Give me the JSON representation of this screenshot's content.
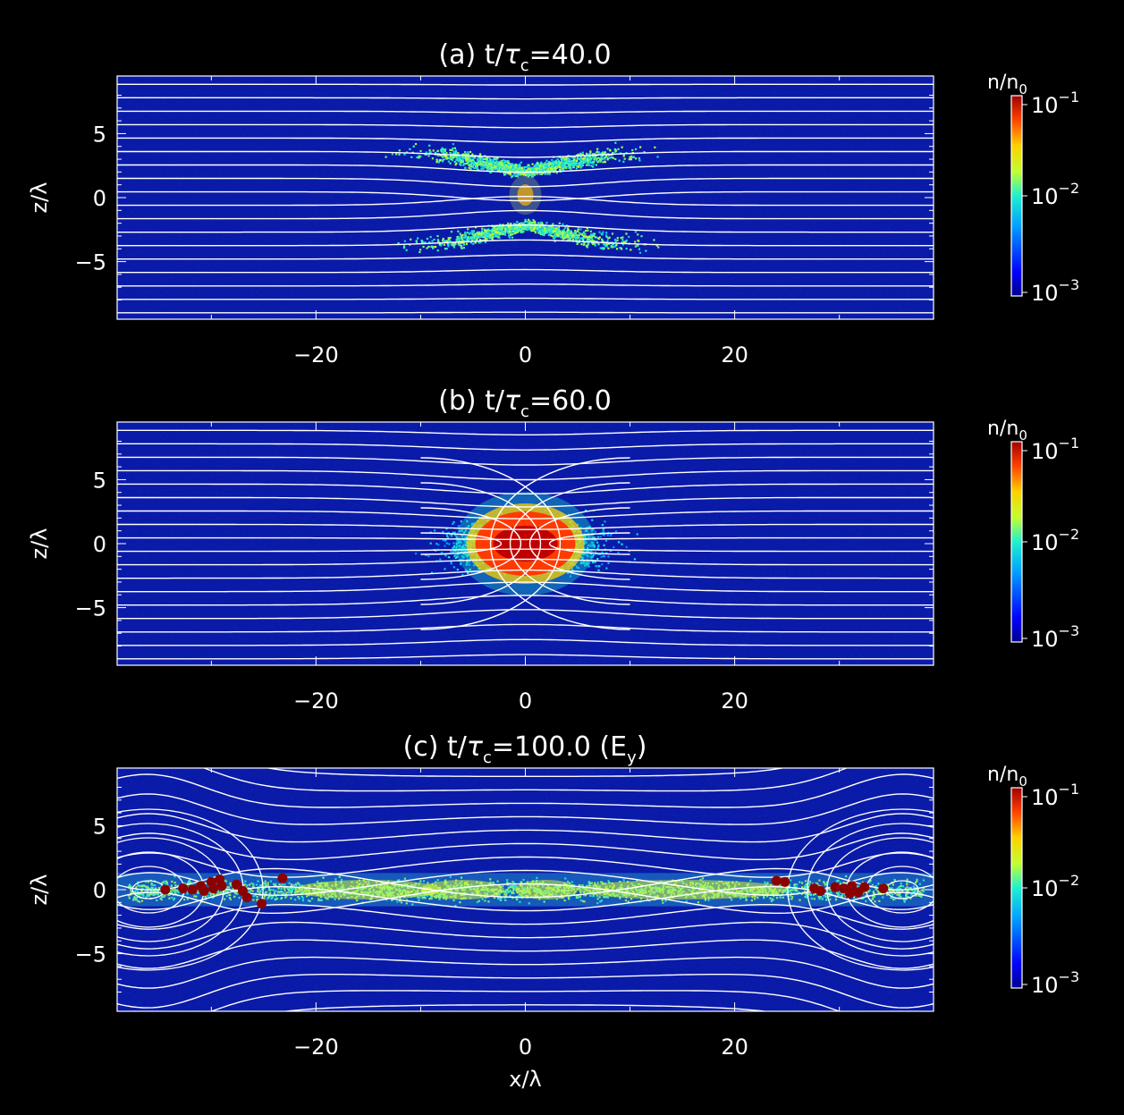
{
  "chart_data": [
    {
      "type": "heatmap",
      "title": "(a) t/τ_c=40.0",
      "title_main": "(a) t/",
      "title_sym": "τ",
      "title_sub": "c",
      "title_rest": "=40.0",
      "xlabel": "",
      "ylabel": "z/λ",
      "xlim": [
        -39,
        39
      ],
      "ylim": [
        -9.5,
        9.5
      ],
      "xticks": [
        -20,
        0,
        20
      ],
      "yticks": [
        -5,
        0,
        5
      ],
      "colorbar_label": "n/n_0",
      "colorbar_ticks": [
        "10^-1",
        "10^-2",
        "10^-3"
      ],
      "color_scale": "log",
      "color_range": [
        0.001,
        0.1
      ],
      "stage": "early",
      "features": "diffuse current sheet with weak X-point at x=0; field lines nearly horizontal"
    },
    {
      "type": "heatmap",
      "title": "(b) t/τ_c=60.0",
      "title_main": "(b) t/",
      "title_sym": "τ",
      "title_sub": "c",
      "title_rest": "=60.0",
      "xlabel": "",
      "ylabel": "z/λ",
      "xlim": [
        -39,
        39
      ],
      "ylim": [
        -9.5,
        9.5
      ],
      "xticks": [
        -20,
        0,
        20
      ],
      "yticks": [
        -5,
        0,
        5
      ],
      "colorbar_label": "n/n_0",
      "colorbar_ticks": [
        "10^-1",
        "10^-2",
        "10^-3"
      ],
      "color_scale": "log",
      "color_range": [
        0.001,
        0.1
      ],
      "stage": "plasmoid",
      "features": "dense plasmoid at x=0 near 10^-1; O-shaped field lines around x=±10"
    },
    {
      "type": "heatmap",
      "title": "(c) t/τ_c=100.0 (E_y)",
      "title_main": "(c) t/",
      "title_sym": "τ",
      "title_sub": "c",
      "title_rest": "=100.0 (E",
      "title_sub2": "y",
      "title_end": ")",
      "xlabel": "x/λ",
      "ylabel": "z/λ",
      "xlim": [
        -39,
        39
      ],
      "ylim": [
        -9.5,
        9.5
      ],
      "xticks": [
        -20,
        0,
        20
      ],
      "yticks": [
        -5,
        0,
        5
      ],
      "colorbar_label": "n/n_0",
      "colorbar_ticks": [
        "10^-1",
        "10^-2",
        "10^-3"
      ],
      "color_scale": "log",
      "color_range": [
        0.001,
        0.1
      ],
      "stage": "late",
      "features": "thin current sheet along z=0; large magnetic islands at x=±34; E_y markers as dark red dots",
      "markers": [
        {
          "x": -34.4,
          "z": 0
        },
        {
          "x": -32.7,
          "z": 0.1
        },
        {
          "x": -31.8,
          "z": 0
        },
        {
          "x": -31.0,
          "z": 0.3
        },
        {
          "x": -30.0,
          "z": 0.6
        },
        {
          "x": -29.2,
          "z": 0.8
        },
        {
          "x": -29.8,
          "z": 0.1
        },
        {
          "x": -30.7,
          "z": -0.1
        },
        {
          "x": -29.0,
          "z": 0.3
        },
        {
          "x": -27.6,
          "z": 0.4
        },
        {
          "x": -27.0,
          "z": -0.1
        },
        {
          "x": -26.6,
          "z": -0.6
        },
        {
          "x": -25.2,
          "z": -1.1
        },
        {
          "x": -23.2,
          "z": 0.9
        },
        {
          "x": 24.0,
          "z": 0.7
        },
        {
          "x": 24.8,
          "z": 0.6
        },
        {
          "x": 27.6,
          "z": 0.1
        },
        {
          "x": 28.2,
          "z": -0.1
        },
        {
          "x": 29.6,
          "z": 0.2
        },
        {
          "x": 30.4,
          "z": 0.1
        },
        {
          "x": 31.2,
          "z": 0.3
        },
        {
          "x": 31.8,
          "z": -0.2
        },
        {
          "x": 32.4,
          "z": 0.2
        },
        {
          "x": 31.0,
          "z": -0.3
        },
        {
          "x": 34.2,
          "z": 0.1
        }
      ]
    }
  ],
  "colors": {
    "background": "#000000",
    "frame": "#ffffff",
    "field_lines": "#ffffff",
    "marker": "#8b0000"
  }
}
